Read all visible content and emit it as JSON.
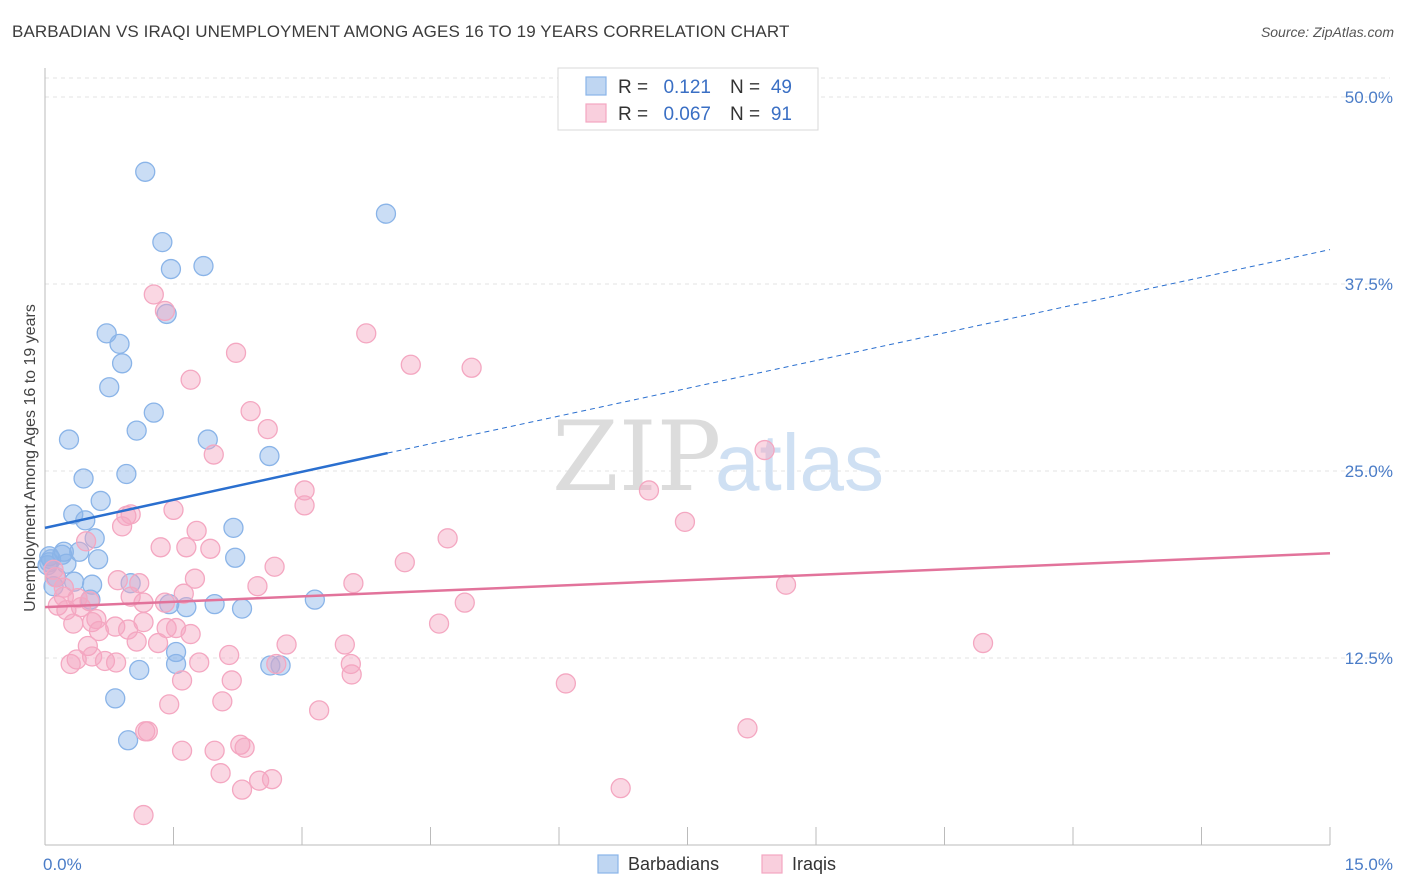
{
  "title": "BARBADIAN VS IRAQI UNEMPLOYMENT AMONG AGES 16 TO 19 YEARS CORRELATION CHART",
  "source": "Source: ZipAtlas.com",
  "watermark": {
    "zip": "ZIP",
    "atlas": "atlas"
  },
  "chart_data": {
    "type": "scatter",
    "xlabel": "",
    "ylabel": "Unemployment Among Ages 16 to 19 years",
    "xlim": [
      0,
      15
    ],
    "ylim": [
      0,
      50
    ],
    "x_tick_labels": [
      "0.0%",
      "15.0%"
    ],
    "y_ticks": [
      12.5,
      25.0,
      37.5,
      50.0
    ],
    "y_tick_labels": [
      "12.5%",
      "25.0%",
      "37.5%",
      "50.0%"
    ],
    "grid": "horizontal dashed",
    "legend": {
      "placement": "top-center",
      "entries": [
        {
          "r_label": "R =",
          "r_value": "0.121",
          "n_label": "N =",
          "n_value": "49"
        },
        {
          "r_label": "R =",
          "r_value": "0.067",
          "n_label": "N =",
          "n_value": "91"
        }
      ]
    },
    "bottom_legend_placement": "bottom-center",
    "series": [
      {
        "name": "Barbadians",
        "color": "#8ab4e8",
        "trend_color": "#2a6fcf",
        "trend": {
          "x0": 0,
          "y0": 21.2,
          "x1": 4.0,
          "y1": 26.2,
          "x_end": 15,
          "y_end": 39.8
        },
        "points": [
          [
            1.17,
            45.0
          ],
          [
            3.98,
            42.2
          ],
          [
            1.37,
            40.3
          ],
          [
            1.47,
            38.5
          ],
          [
            1.85,
            38.7
          ],
          [
            1.42,
            35.5
          ],
          [
            0.72,
            34.2
          ],
          [
            0.87,
            33.5
          ],
          [
            0.9,
            32.2
          ],
          [
            0.75,
            30.6
          ],
          [
            1.27,
            28.9
          ],
          [
            1.07,
            27.7
          ],
          [
            0.28,
            27.1
          ],
          [
            1.9,
            27.1
          ],
          [
            2.62,
            26.0
          ],
          [
            0.95,
            24.8
          ],
          [
            0.45,
            24.5
          ],
          [
            0.65,
            23.0
          ],
          [
            0.33,
            22.1
          ],
          [
            0.47,
            21.7
          ],
          [
            2.2,
            21.2
          ],
          [
            0.58,
            20.5
          ],
          [
            0.05,
            19.3
          ],
          [
            0.2,
            19.4
          ],
          [
            0.22,
            19.6
          ],
          [
            0.07,
            19.1
          ],
          [
            0.05,
            18.9
          ],
          [
            0.4,
            19.6
          ],
          [
            0.62,
            19.1
          ],
          [
            2.22,
            19.2
          ],
          [
            0.25,
            18.8
          ],
          [
            0.03,
            18.7
          ],
          [
            0.13,
            17.9
          ],
          [
            0.1,
            17.3
          ],
          [
            0.34,
            17.6
          ],
          [
            0.55,
            17.4
          ],
          [
            1.0,
            17.5
          ],
          [
            0.53,
            16.4
          ],
          [
            1.45,
            16.1
          ],
          [
            1.65,
            15.9
          ],
          [
            1.98,
            16.1
          ],
          [
            2.3,
            15.8
          ],
          [
            3.15,
            16.4
          ],
          [
            1.53,
            12.9
          ],
          [
            1.53,
            12.1
          ],
          [
            2.63,
            12.0
          ],
          [
            2.75,
            12.0
          ],
          [
            1.1,
            11.7
          ],
          [
            0.82,
            9.8
          ],
          [
            0.97,
            7.0
          ]
        ]
      },
      {
        "name": "Iraqis",
        "color": "#f4a7c1",
        "trend_color": "#e2739b",
        "trend": {
          "x0": 0,
          "y0": 15.9,
          "x1": 15,
          "y1": 19.5
        },
        "points": [
          [
            1.27,
            36.8
          ],
          [
            1.4,
            35.7
          ],
          [
            3.75,
            34.2
          ],
          [
            2.23,
            32.9
          ],
          [
            4.27,
            32.1
          ],
          [
            4.98,
            31.9
          ],
          [
            1.7,
            31.1
          ],
          [
            2.4,
            29.0
          ],
          [
            2.6,
            27.8
          ],
          [
            8.4,
            26.4
          ],
          [
            1.97,
            26.1
          ],
          [
            3.03,
            23.7
          ],
          [
            7.05,
            23.7
          ],
          [
            3.03,
            22.7
          ],
          [
            1.5,
            22.4
          ],
          [
            0.95,
            22.0
          ],
          [
            1.0,
            22.1
          ],
          [
            7.47,
            21.6
          ],
          [
            0.9,
            21.3
          ],
          [
            1.77,
            21.0
          ],
          [
            4.7,
            20.5
          ],
          [
            0.48,
            20.3
          ],
          [
            1.35,
            19.9
          ],
          [
            1.65,
            19.9
          ],
          [
            1.93,
            19.8
          ],
          [
            4.2,
            18.9
          ],
          [
            2.68,
            18.6
          ],
          [
            0.1,
            18.4
          ],
          [
            0.12,
            17.9
          ],
          [
            0.22,
            17.2
          ],
          [
            1.75,
            17.8
          ],
          [
            1.1,
            17.5
          ],
          [
            3.6,
            17.5
          ],
          [
            2.48,
            17.3
          ],
          [
            8.65,
            17.4
          ],
          [
            0.22,
            16.6
          ],
          [
            0.85,
            17.7
          ],
          [
            1.62,
            16.8
          ],
          [
            0.52,
            16.3
          ],
          [
            1.15,
            16.2
          ],
          [
            1.4,
            16.2
          ],
          [
            1.0,
            16.6
          ],
          [
            0.15,
            16.0
          ],
          [
            0.25,
            15.7
          ],
          [
            0.38,
            16.5
          ],
          [
            0.42,
            15.9
          ],
          [
            4.9,
            16.2
          ],
          [
            0.6,
            15.1
          ],
          [
            0.33,
            14.8
          ],
          [
            0.55,
            14.9
          ],
          [
            0.63,
            14.3
          ],
          [
            0.82,
            14.6
          ],
          [
            1.15,
            14.9
          ],
          [
            1.42,
            14.5
          ],
          [
            1.53,
            14.5
          ],
          [
            4.6,
            14.8
          ],
          [
            0.97,
            14.4
          ],
          [
            1.07,
            13.6
          ],
          [
            1.32,
            13.5
          ],
          [
            1.7,
            14.1
          ],
          [
            0.5,
            13.3
          ],
          [
            0.37,
            12.4
          ],
          [
            0.55,
            12.6
          ],
          [
            0.7,
            12.3
          ],
          [
            2.82,
            13.4
          ],
          [
            3.5,
            13.4
          ],
          [
            10.95,
            13.5
          ],
          [
            0.3,
            12.1
          ],
          [
            0.83,
            12.2
          ],
          [
            1.8,
            12.2
          ],
          [
            2.15,
            12.7
          ],
          [
            2.7,
            12.1
          ],
          [
            3.57,
            12.1
          ],
          [
            3.58,
            11.4
          ],
          [
            1.6,
            11.0
          ],
          [
            2.18,
            11.0
          ],
          [
            6.08,
            10.8
          ],
          [
            1.45,
            9.4
          ],
          [
            2.07,
            9.6
          ],
          [
            3.2,
            9.0
          ],
          [
            1.17,
            7.6
          ],
          [
            1.2,
            7.6
          ],
          [
            8.2,
            7.8
          ],
          [
            2.28,
            6.7
          ],
          [
            2.33,
            6.5
          ],
          [
            1.6,
            6.3
          ],
          [
            1.98,
            6.3
          ],
          [
            2.05,
            4.8
          ],
          [
            2.5,
            4.3
          ],
          [
            2.65,
            4.4
          ],
          [
            2.3,
            3.7
          ],
          [
            6.72,
            3.8
          ],
          [
            1.15,
            2.0
          ]
        ]
      }
    ]
  }
}
